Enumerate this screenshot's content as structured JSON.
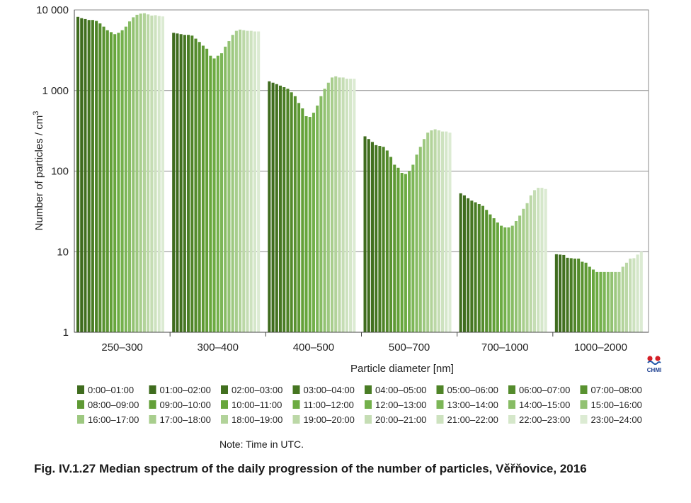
{
  "chart_data": {
    "type": "bar",
    "scale": "log",
    "ylim": [
      1,
      10000
    ],
    "yticks": [
      {
        "value": 1,
        "label": "1"
      },
      {
        "value": 10,
        "label": "10"
      },
      {
        "value": 100,
        "label": "100"
      },
      {
        "value": 1000,
        "label": "1 000"
      },
      {
        "value": 10000,
        "label": "10 000"
      }
    ],
    "ylabel_main": "Number of particles / cm",
    "ylabel_sup": "3",
    "xlabel": "Particle diameter [nm]",
    "grid": "horizontal",
    "categories": [
      "250–300",
      "300–400",
      "400–500",
      "500–700",
      "700–1000",
      "1000–2000"
    ],
    "series_names": [
      "0:00–01:00",
      "01:00–02:00",
      "02:00–03:00",
      "03:00–04:00",
      "04:00–05:00",
      "05:00–06:00",
      "06:00–07:00",
      "07:00–08:00",
      "08:00–09:00",
      "09:00–10:00",
      "10:00–11:00",
      "11:00–12:00",
      "12:00–13:00",
      "13:00–14:00",
      "14:00–15:00",
      "15:00–16:00",
      "16:00–17:00",
      "17:00–18:00",
      "18:00–19:00",
      "19:00–20:00",
      "20:00–21:00",
      "21:00–22:00",
      "22:00–23:00",
      "23:00–24:00"
    ],
    "series_colors": [
      "#3f6c1e",
      "#3f6c1e",
      "#42701f",
      "#467622",
      "#4a7d25",
      "#4f8428",
      "#548b2c",
      "#599230",
      "#5e9934",
      "#63a038",
      "#67a63c",
      "#6cab42",
      "#73b04b",
      "#7cb657",
      "#87bc64",
      "#92c272",
      "#9dc880",
      "#a8ce8d",
      "#b2d39a",
      "#bcd8a7",
      "#c5ddb4",
      "#cde2bf",
      "#d5e7ca",
      "#dcebd3"
    ],
    "values": [
      [
        8200,
        7900,
        7700,
        7500,
        7500,
        7300,
        6800,
        6200,
        5600,
        5300,
        5000,
        5200,
        5600,
        6200,
        7200,
        8100,
        8700,
        9000,
        9100,
        8800,
        8500,
        8600,
        8400,
        8300
      ],
      [
        5200,
        5100,
        5000,
        4900,
        4900,
        4800,
        4400,
        4000,
        3600,
        3300,
        2700,
        2500,
        2700,
        2900,
        3500,
        4100,
        4900,
        5500,
        5700,
        5600,
        5500,
        5500,
        5400,
        5400
      ],
      [
        1300,
        1250,
        1200,
        1150,
        1100,
        1050,
        950,
        850,
        700,
        600,
        480,
        470,
        530,
        650,
        850,
        1050,
        1250,
        1450,
        1500,
        1450,
        1450,
        1400,
        1400,
        1400
      ],
      [
        270,
        250,
        230,
        210,
        205,
        200,
        180,
        150,
        120,
        110,
        95,
        92,
        100,
        120,
        160,
        200,
        250,
        300,
        320,
        330,
        320,
        310,
        310,
        300
      ],
      [
        53,
        50,
        46,
        43,
        41,
        39,
        37,
        33,
        29,
        26,
        23,
        21,
        20,
        20,
        21,
        24,
        28,
        34,
        40,
        50,
        58,
        62,
        62,
        60
      ],
      [
        9.3,
        9.2,
        9.1,
        8.4,
        8.3,
        8.2,
        8.2,
        7.5,
        7.3,
        6.5,
        6.0,
        5.6,
        5.6,
        5.6,
        5.6,
        5.6,
        5.6,
        5.6,
        6.5,
        7.3,
        8.2,
        8.3,
        9.2,
        10
      ]
    ]
  },
  "note": "Note: Time in UTC.",
  "caption": "Fig. IV.1.27  Median spectrum of the daily progression of the number of particles, Věřňovice, 2016",
  "logo_text": "CHMI",
  "colors": {
    "grid": "#8a8a8a",
    "axis": "#444444",
    "logo_red": "#d42027",
    "logo_blue": "#1f55a8"
  }
}
